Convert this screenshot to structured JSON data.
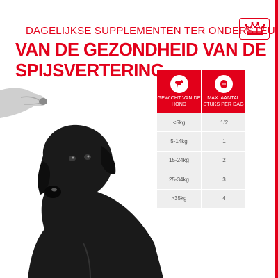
{
  "kicker": "DAGELIJKSE SUPPLEMENTEN TER ONDERSTEUNING",
  "headline": {
    "line1": "VAN DE GEZONDHEID VAN DE",
    "line2": "SPIJSVERTERING"
  },
  "brand_color": "#e2001a",
  "logo": {
    "icon": "crown-icon"
  },
  "table": {
    "header_icons": [
      "dog-icon",
      "kibble-icon"
    ],
    "columns": [
      "GEWICHT VAN DE HOND",
      "MAX. AANTAL STUKS PER DAG"
    ],
    "rows": [
      {
        "weight": "<5kg",
        "count": "1/2"
      },
      {
        "weight": "5-14kg",
        "count": "1"
      },
      {
        "weight": "15-24kg",
        "count": "2"
      },
      {
        "weight": "25-34kg",
        "count": "3"
      },
      {
        "weight": ">35kg",
        "count": "4"
      }
    ]
  }
}
